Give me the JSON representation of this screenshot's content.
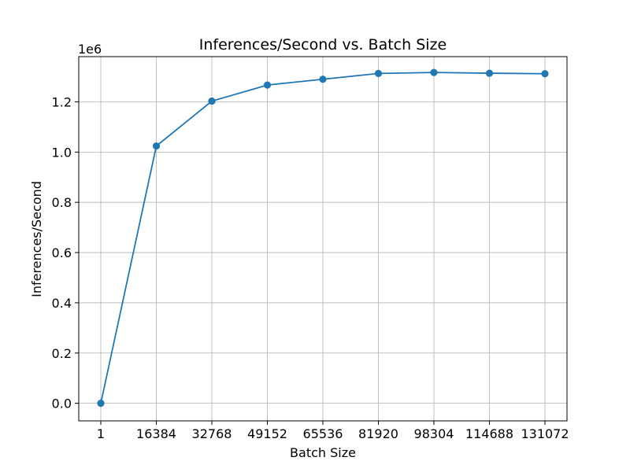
{
  "chart_data": {
    "type": "line",
    "title": "Inferences/Second vs. Batch Size",
    "xlabel": "Batch Size",
    "ylabel": "Inferences/Second",
    "y_scale_label": "1e6",
    "categories": [
      "1",
      "16384",
      "32768",
      "49152",
      "65536",
      "81920",
      "98304",
      "114688",
      "131072"
    ],
    "y_ticks": [
      0.0,
      0.2,
      0.4,
      0.6,
      0.8,
      1.0,
      1.2
    ],
    "y_tick_labels": [
      "0.0",
      "0.2",
      "0.4",
      "0.6",
      "0.8",
      "1.0",
      "1.2"
    ],
    "ylim": [
      -70000,
      1380000
    ],
    "grid": true,
    "line_color": "#1f77b4",
    "series": [
      {
        "values": [
          0,
          1024000,
          1203000,
          1267000,
          1290000,
          1313000,
          1317000,
          1314000,
          1312000
        ]
      }
    ]
  }
}
